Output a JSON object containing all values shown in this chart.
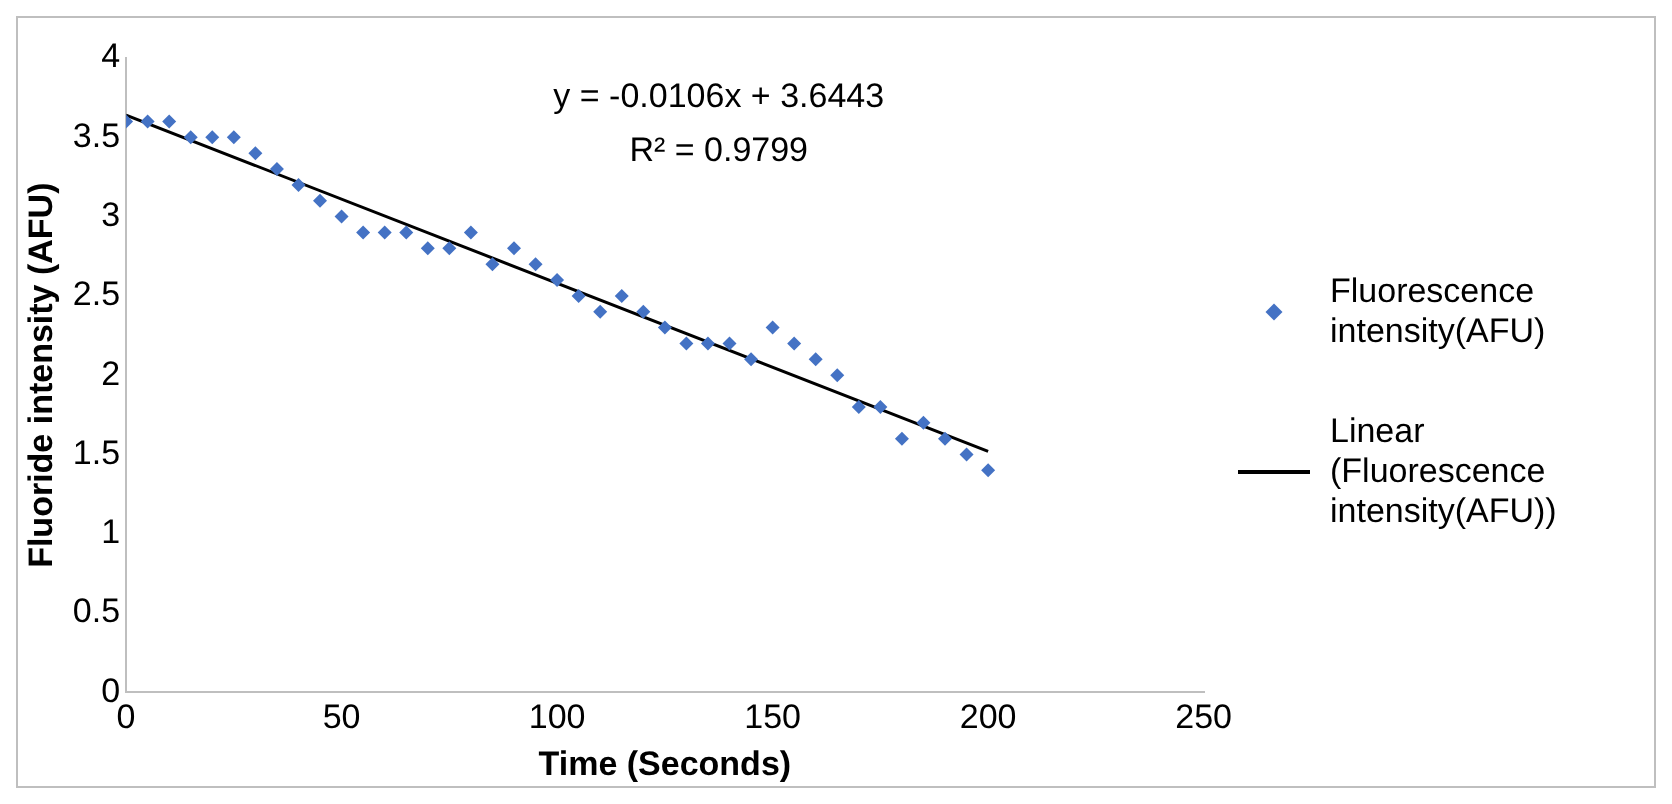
{
  "chart_data": {
    "type": "scatter",
    "xlabel": "Time (Seconds)",
    "ylabel": "Fluoride intensity (AFU)",
    "xlim": [
      0,
      250
    ],
    "xticks": [
      0,
      50,
      100,
      150,
      200,
      250
    ],
    "ylim": [
      0,
      4
    ],
    "yticks": [
      0,
      0.5,
      1,
      1.5,
      2,
      2.5,
      3,
      3.5,
      4
    ],
    "grid": false,
    "legend": "right",
    "annotations": [
      "y = -0.0106x + 3.6443",
      "R² = 0.9799"
    ],
    "series": [
      {
        "name": "Fluorescence intensity(AFU)",
        "marker": "diamond",
        "color": "#4472c4",
        "x": [
          0,
          5,
          10,
          15,
          20,
          25,
          30,
          35,
          40,
          45,
          50,
          55,
          60,
          65,
          70,
          75,
          80,
          85,
          90,
          95,
          100,
          105,
          110,
          115,
          120,
          125,
          130,
          135,
          140,
          145,
          150,
          155,
          160,
          165,
          170,
          175,
          180,
          185,
          190,
          195,
          200
        ],
        "values": [
          3.6,
          3.6,
          3.6,
          3.5,
          3.5,
          3.5,
          3.4,
          3.3,
          3.2,
          3.1,
          3.0,
          2.9,
          2.9,
          2.9,
          2.8,
          2.8,
          2.9,
          2.7,
          2.8,
          2.7,
          2.6,
          2.5,
          2.4,
          2.5,
          2.4,
          2.3,
          2.2,
          2.2,
          2.2,
          2.1,
          2.3,
          2.2,
          2.1,
          2.0,
          1.8,
          1.8,
          1.6,
          1.7,
          1.6,
          1.5,
          1.4
        ]
      },
      {
        "name": "Linear (Fluorescence intensity(AFU))",
        "type": "line",
        "marker": "none",
        "color": "#000000",
        "x": [
          0,
          200
        ],
        "values": [
          3.64,
          1.52
        ]
      }
    ]
  }
}
